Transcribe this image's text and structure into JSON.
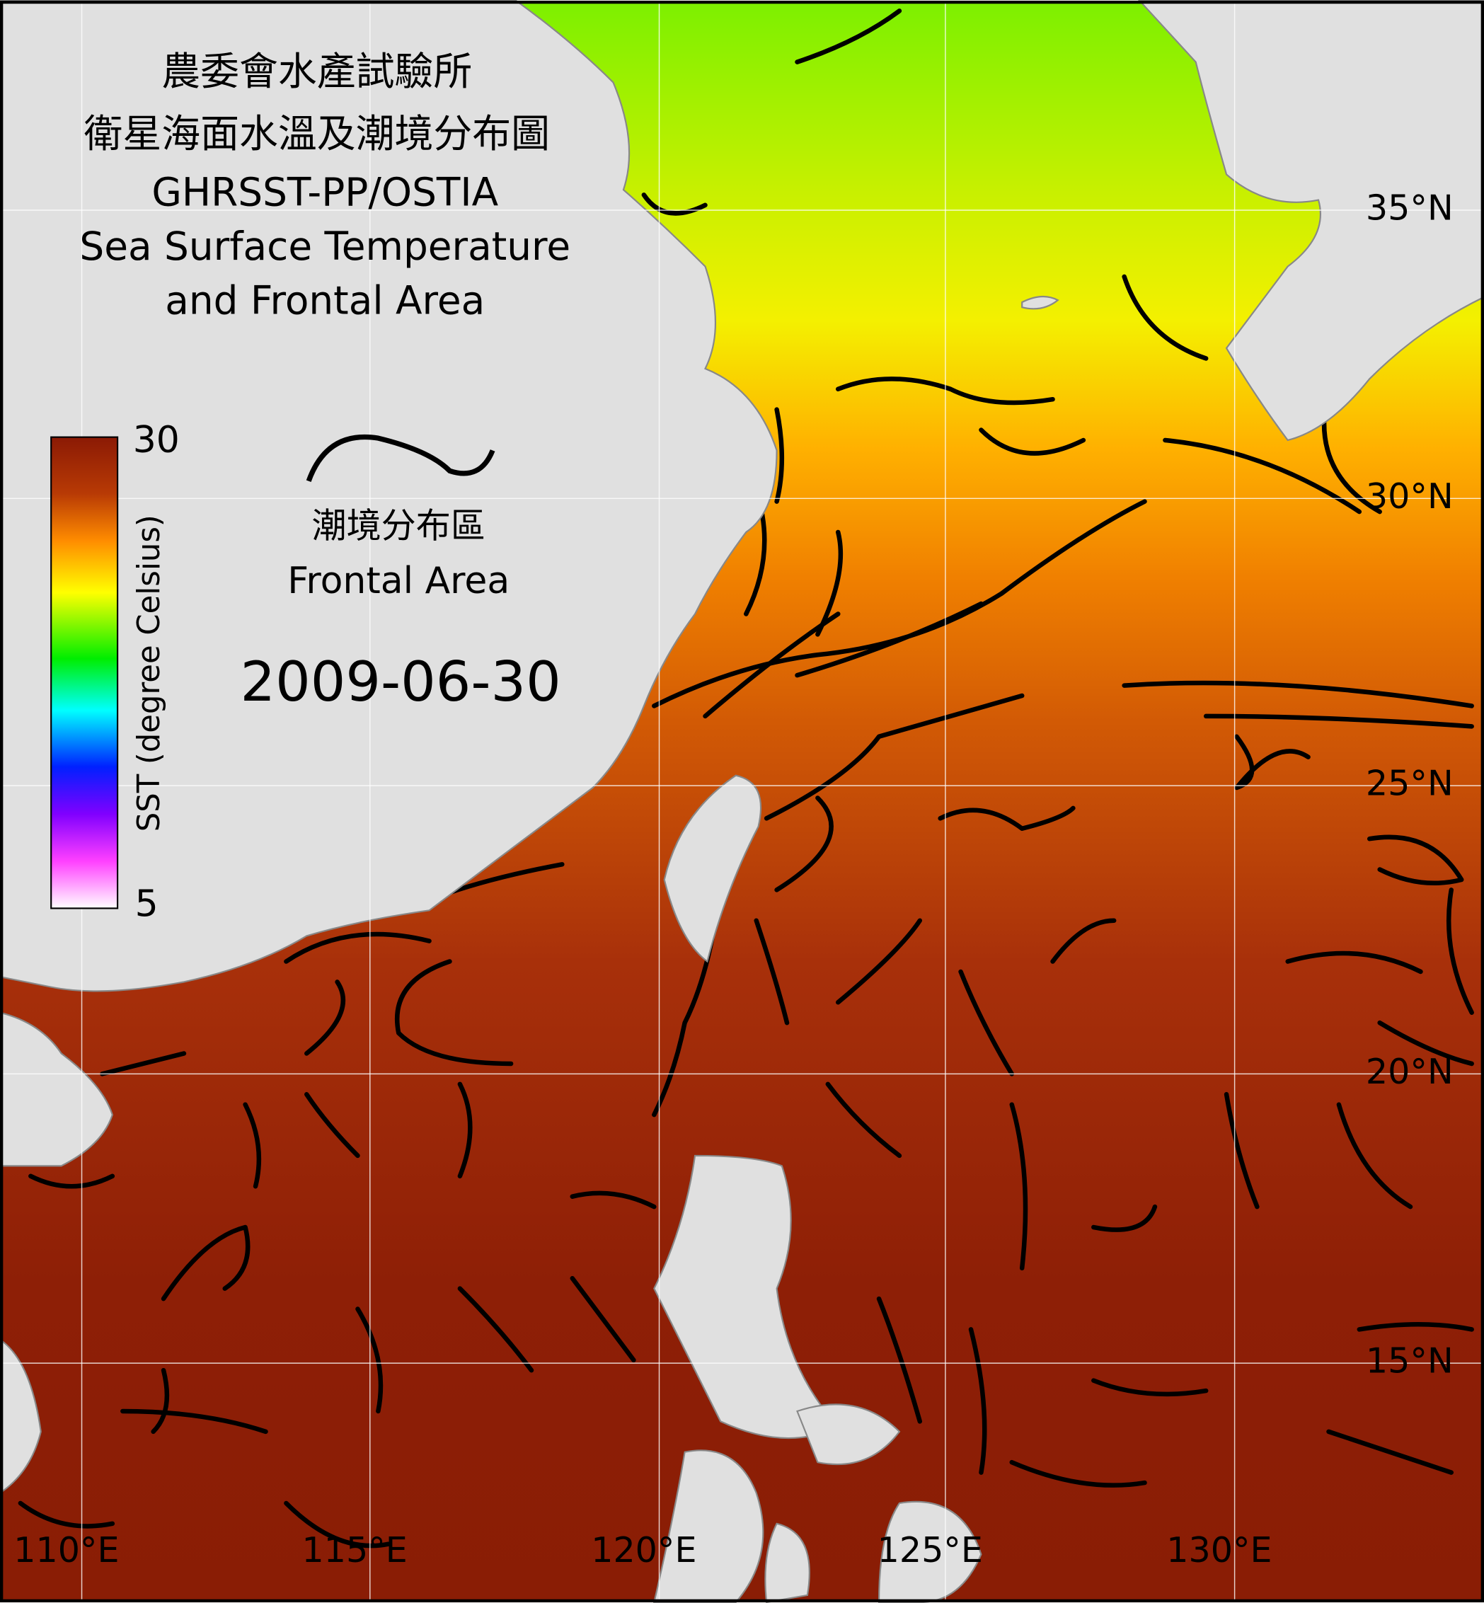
{
  "title": {
    "zh_line1": "農委會水產試驗所",
    "zh_line2": "衛星海面水溫及潮境分布圖",
    "en_line1": "GHRSST-PP/OSTIA",
    "en_line2": "Sea Surface Temperature",
    "en_line3": "and Frontal Area"
  },
  "colorbar": {
    "label": "SST (degree Celsius)",
    "max": 30,
    "min": 5
  },
  "legend": {
    "zh": "潮境分布區",
    "en": "Frontal Area"
  },
  "date": "2009-06-30",
  "lat_labels": [
    "35°N",
    "30°N",
    "25°N",
    "20°N",
    "15°N"
  ],
  "lon_labels": [
    "110°E",
    "115°E",
    "120°E",
    "125°E",
    "130°E"
  ]
}
